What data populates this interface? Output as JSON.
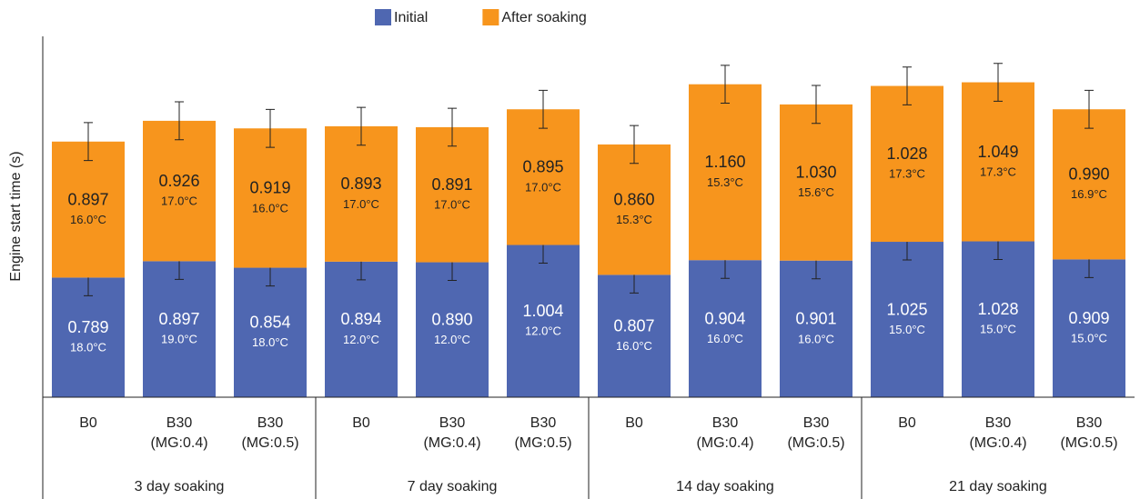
{
  "chart_data": {
    "type": "stacked-bar",
    "ylabel": "Engine start time (s)",
    "ylim": [
      0,
      2.38
    ],
    "categories": [
      [
        "B0"
      ],
      [
        "B30",
        "(MG:0.4)"
      ],
      [
        "B30",
        "(MG:0.5)"
      ],
      [
        "B0"
      ],
      [
        "B30",
        "(MG:0.4)"
      ],
      [
        "B30",
        "(MG:0.5)"
      ],
      [
        "B0"
      ],
      [
        "B30",
        "(MG:0.4)"
      ],
      [
        "B30",
        "(MG:0.5)"
      ],
      [
        "B0"
      ],
      [
        "B30",
        "(MG:0.4)"
      ],
      [
        "B30",
        "(MG:0.5)"
      ]
    ],
    "groups": [
      "3 day soaking",
      "7 day soaking",
      "14 day soaking",
      "21 day soaking"
    ],
    "series": [
      {
        "name": "Initial",
        "color": "#4f67b1",
        "text_color": "#ffffff",
        "values": [
          0.789,
          0.897,
          0.854,
          0.894,
          0.89,
          1.004,
          0.807,
          0.904,
          0.901,
          1.025,
          1.028,
          0.909
        ],
        "value_labels": [
          "0.789",
          "0.897",
          "0.854",
          "0.894",
          "0.890",
          "1.004",
          "0.807",
          "0.904",
          "0.901",
          "1.025",
          "1.028",
          "0.909"
        ],
        "temperatures": [
          "18.0°C",
          "19.0°C",
          "18.0°C",
          "12.0°C",
          "12.0°C",
          "12.0°C",
          "16.0°C",
          "16.0°C",
          "16.0°C",
          "15.0°C",
          "15.0°C",
          "15.0°C"
        ],
        "errors": [
          0.12,
          0.12,
          0.12,
          0.12,
          0.12,
          0.12,
          0.12,
          0.12,
          0.12,
          0.12,
          0.12,
          0.12
        ]
      },
      {
        "name": "After soaking",
        "color": "#f7951d",
        "text_color": "#222222",
        "values": [
          0.897,
          0.926,
          0.919,
          0.893,
          0.891,
          0.895,
          0.86,
          1.16,
          1.03,
          1.028,
          1.049,
          0.99
        ],
        "value_labels": [
          "0.897",
          "0.926",
          "0.919",
          "0.893",
          "0.891",
          "0.895",
          "0.860",
          "1.160",
          "1.030",
          "1.028",
          "1.049",
          "0.990"
        ],
        "temperatures": [
          "16.0°C",
          "17.0°C",
          "16.0°C",
          "17.0°C",
          "17.0°C",
          "17.0°C",
          "15.3°C",
          "15.3°C",
          "15.6°C",
          "17.3°C",
          "17.3°C",
          "16.9°C"
        ],
        "errors": [
          0.125,
          0.125,
          0.125,
          0.125,
          0.125,
          0.125,
          0.125,
          0.125,
          0.125,
          0.125,
          0.125,
          0.125
        ]
      }
    ]
  }
}
